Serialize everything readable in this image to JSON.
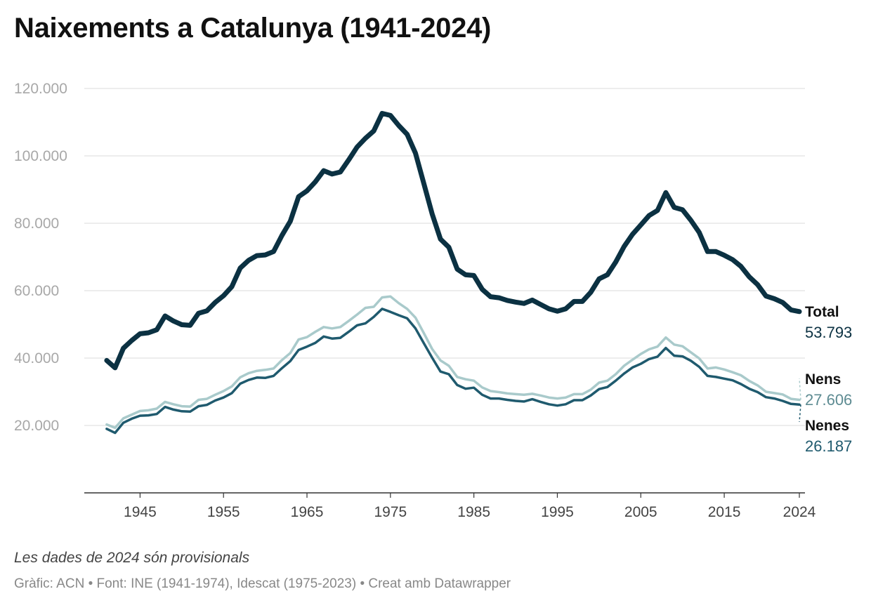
{
  "title": "Naixements a Catalunya (1941-2024)",
  "note": "Les dades de 2024 són provisionals",
  "footer": "Gràfic: ACN • Font: INE (1941-1974), Idescat (1975-2023) • Creat amb Datawrapper",
  "chart_data": {
    "type": "line",
    "title": "Naixements a Catalunya (1941-2024)",
    "xlabel": "",
    "ylabel": "",
    "xlim": [
      1940,
      2024
    ],
    "ylim": [
      0,
      120000
    ],
    "grid": true,
    "y_ticks": [
      20000,
      40000,
      60000,
      80000,
      100000,
      120000
    ],
    "y_tick_labels": [
      "20.000",
      "40.000",
      "60.000",
      "80.000",
      "100.000",
      "120.000"
    ],
    "x_ticks": [
      1945,
      1955,
      1965,
      1975,
      1985,
      1995,
      2005,
      2015,
      2024
    ],
    "x_tick_labels": [
      "1945",
      "1955",
      "1965",
      "1975",
      "1985",
      "1995",
      "2005",
      "2015",
      "2024"
    ],
    "x_start": 1941,
    "series": [
      {
        "name": "Total",
        "end_label": "53.793",
        "color": "#0b3142",
        "values": [
          39300,
          37100,
          42900,
          45200,
          47200,
          47500,
          48400,
          52500,
          51000,
          49900,
          49700,
          53300,
          54000,
          56500,
          58500,
          61200,
          66700,
          69000,
          70400,
          70600,
          71600,
          76400,
          80600,
          87900,
          89600,
          92300,
          95600,
          94600,
          95200,
          98800,
          102600,
          105200,
          107400,
          112600,
          112000,
          109000,
          106400,
          100800,
          91800,
          82800,
          75300,
          72900,
          66400,
          64700,
          64500,
          60400,
          58200,
          57900,
          57100,
          56600,
          56200,
          57200,
          55900,
          54600,
          53900,
          54600,
          56800,
          56800,
          59500,
          63500,
          64700,
          68500,
          73100,
          76700,
          79500,
          82300,
          83800,
          89100,
          84700,
          84000,
          80900,
          77300,
          71600,
          71600,
          70500,
          69200,
          67200,
          64100,
          61800,
          58400,
          57600,
          56500,
          54300,
          53793
        ]
      },
      {
        "name": "Nens",
        "end_label": "27.606",
        "color": "#a9cacb",
        "values": [
          20300,
          19300,
          22100,
          23200,
          24300,
          24500,
          25000,
          27000,
          26300,
          25700,
          25600,
          27600,
          27900,
          29100,
          30200,
          31600,
          34300,
          35500,
          36200,
          36500,
          36900,
          39400,
          41500,
          45500,
          46200,
          47800,
          49200,
          48800,
          49200,
          51000,
          52900,
          54900,
          55200,
          58000,
          58300,
          56300,
          54600,
          52000,
          47400,
          42700,
          39300,
          37700,
          34400,
          33700,
          33300,
          31300,
          30200,
          29900,
          29500,
          29300,
          29100,
          29400,
          28900,
          28300,
          28000,
          28300,
          29300,
          29300,
          30600,
          32700,
          33300,
          35200,
          37700,
          39500,
          41200,
          42600,
          43400,
          46100,
          44000,
          43500,
          41700,
          39900,
          36900,
          37200,
          36600,
          35800,
          34900,
          33200,
          31900,
          30000,
          29600,
          29200,
          27900,
          27606
        ]
      },
      {
        "name": "Nenes",
        "end_label": "26.187",
        "color": "#1f5a6e",
        "values": [
          19000,
          17800,
          20800,
          22000,
          22900,
          23000,
          23400,
          25500,
          24700,
          24200,
          24100,
          25700,
          26100,
          27400,
          28300,
          29600,
          32400,
          33500,
          34200,
          34100,
          34700,
          37000,
          39100,
          42400,
          43400,
          44500,
          46400,
          45800,
          46000,
          47800,
          49700,
          50300,
          52200,
          54600,
          53700,
          52700,
          51800,
          48800,
          44400,
          40100,
          36000,
          35200,
          32000,
          30900,
          31200,
          29100,
          28000,
          28000,
          27600,
          27300,
          27100,
          27800,
          27000,
          26300,
          25900,
          26300,
          27500,
          27500,
          28900,
          30800,
          31400,
          33300,
          35400,
          37200,
          38300,
          39700,
          40400,
          43000,
          40700,
          40500,
          39200,
          37400,
          34700,
          34400,
          33900,
          33400,
          32300,
          30900,
          29900,
          28400,
          28000,
          27300,
          26400,
          26187
        ]
      }
    ]
  }
}
